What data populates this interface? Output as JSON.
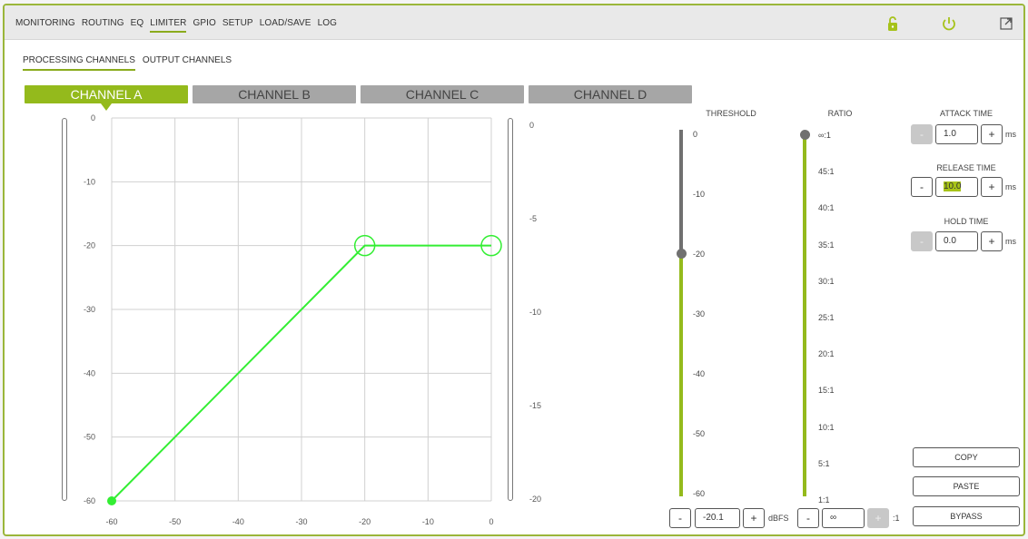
{
  "nav": {
    "items": [
      "MONITORING",
      "ROUTING",
      "EQ",
      "LIMITER",
      "GPIO",
      "SETUP",
      "LOAD/SAVE",
      "LOG"
    ],
    "active": "LIMITER",
    "icons": {
      "lock": "lock-icon",
      "power": "power-icon",
      "expand": "expand-icon"
    },
    "accent": "#94ba1c"
  },
  "subnav": {
    "processing": "PROCESSING CHANNELS",
    "output": "OUTPUT CHANNELS"
  },
  "channels": [
    "CHANNEL A",
    "CHANNEL B",
    "CHANNEL C",
    "CHANNEL D"
  ],
  "graph": {
    "y_ticks": [
      "0",
      "-10",
      "-20",
      "-30",
      "-40",
      "-50",
      "-60"
    ],
    "x_ticks": [
      "-60",
      "-50",
      "-40",
      "-30",
      "-20",
      "-10",
      "0"
    ],
    "right_ticks": [
      "0",
      "-5",
      "-10",
      "-15",
      "-20"
    ],
    "curve": [
      [
        -60,
        -60
      ],
      [
        -20,
        -20
      ],
      [
        0,
        -20
      ]
    ],
    "threshold_db": -20
  },
  "threshold": {
    "label": "THRESHOLD",
    "scale": [
      "0",
      "-10",
      "-20",
      "-30",
      "-40",
      "-50",
      "-60"
    ],
    "value": "-20.1",
    "unit": "dBFS",
    "minus": "-",
    "plus": "+"
  },
  "ratio": {
    "label": "RATIO",
    "scale": [
      "∞:1",
      "45:1",
      "40:1",
      "35:1",
      "30:1",
      "25:1",
      "20:1",
      "15:1",
      "10:1",
      "5:1",
      "1:1"
    ],
    "value": "∞",
    "unit": ":1",
    "minus": "-",
    "plus": "+"
  },
  "attack": {
    "label": "ATTACK TIME",
    "value": "1.0",
    "unit": "ms",
    "minus": "-",
    "plus": "+"
  },
  "release": {
    "label": "RELEASE TIME",
    "value": "10.0",
    "unit": "ms",
    "minus": "-",
    "plus": "+"
  },
  "hold": {
    "label": "HOLD TIME",
    "value": "0.0",
    "unit": "ms",
    "minus": "-",
    "plus": "+"
  },
  "actions": {
    "copy": "COPY",
    "paste": "PASTE",
    "bypass": "BYPASS"
  }
}
